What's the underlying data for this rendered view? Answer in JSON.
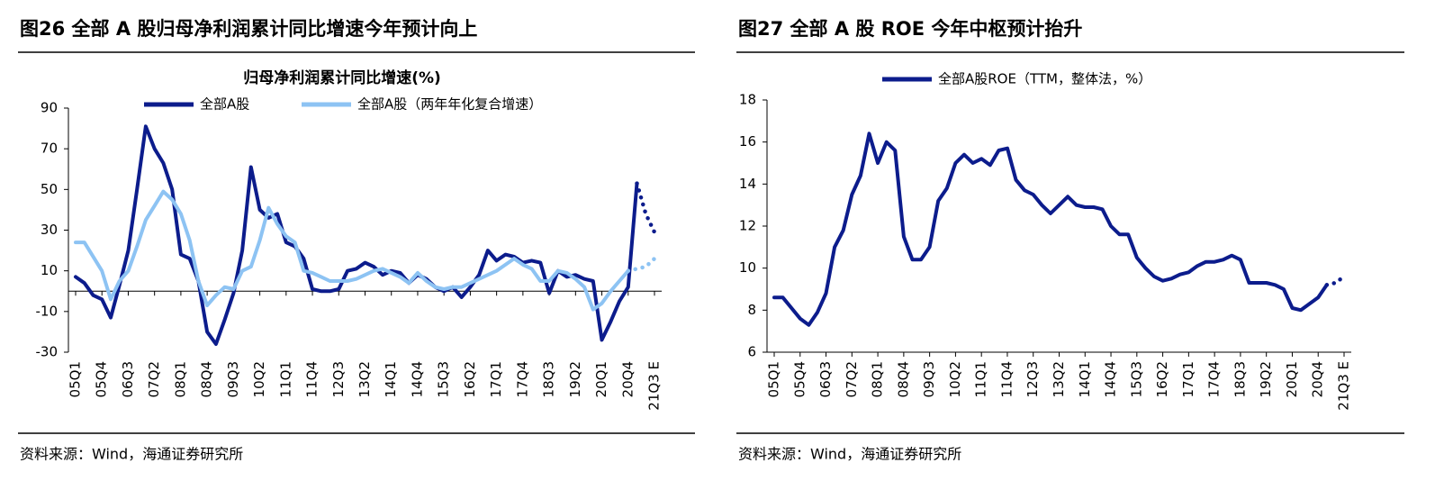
{
  "chart_data": [
    {
      "type": "line",
      "figure_title": "图26 全部 A 股归母净利润累计同比增速今年预计向上",
      "title": "归母净利润累计同比增速(%)",
      "source": "资料来源：Wind，海通证券研究所",
      "categories": [
        "05Q1",
        null,
        null,
        "05Q4",
        null,
        null,
        "06Q3",
        null,
        null,
        "07Q2",
        null,
        null,
        "08Q1",
        null,
        null,
        "08Q4",
        null,
        null,
        "09Q3",
        null,
        null,
        "10Q2",
        null,
        null,
        "11Q1",
        null,
        null,
        "11Q4",
        null,
        null,
        "12Q3",
        null,
        null,
        "13Q2",
        null,
        null,
        "14Q1",
        null,
        null,
        "14Q4",
        null,
        null,
        "15Q3",
        null,
        null,
        "16Q2",
        null,
        null,
        "17Q1",
        null,
        null,
        "17Q4",
        null,
        null,
        "18Q3",
        null,
        null,
        "19Q2",
        null,
        null,
        "20Q1",
        null,
        null,
        "20Q4",
        null,
        null,
        "21Q3 E"
      ],
      "series": [
        {
          "name": "全部A股",
          "color": "#0c1c8c",
          "dotted_from": 64,
          "values": [
            7,
            4,
            -2,
            -4,
            -13,
            3,
            20,
            50,
            81,
            70,
            63,
            50,
            18,
            16,
            5,
            -20,
            -26,
            -14,
            -1,
            20,
            61,
            40,
            36,
            38,
            24,
            22,
            16,
            1,
            0,
            0,
            1,
            10,
            11,
            14,
            12,
            8,
            10,
            9,
            4,
            8,
            6,
            2,
            0,
            2,
            -3,
            2,
            8,
            20,
            15,
            18,
            17,
            14,
            15,
            14,
            -1,
            10,
            7,
            8,
            6,
            5,
            -24,
            -15,
            -5,
            2,
            53,
            38,
            29
          ]
        },
        {
          "name": "全部A股（两年年化复合增速）",
          "color": "#8dc3f3",
          "dotted_from": 63,
          "values": [
            24,
            24,
            17,
            10,
            -4,
            5,
            10,
            22,
            35,
            42,
            49,
            45,
            38,
            25,
            5,
            -7,
            -2,
            2,
            1,
            10,
            12,
            25,
            41,
            33,
            27,
            24,
            10,
            9,
            7,
            5,
            5,
            5,
            6,
            8,
            10,
            11,
            9,
            7,
            4,
            9,
            5,
            2,
            1,
            2,
            2,
            4,
            6,
            8,
            10,
            13,
            16,
            13,
            11,
            5,
            5,
            10,
            9,
            6,
            2,
            -9,
            -6,
            0,
            5,
            10,
            11,
            12,
            16
          ]
        }
      ],
      "ylim": [
        -30,
        90
      ],
      "yticks": [
        -30,
        -10,
        10,
        30,
        50,
        70,
        90
      ],
      "zero_line": true
    },
    {
      "type": "line",
      "figure_title": "图27  全部 A 股 ROE 今年中枢预计抬升",
      "source": "资料来源：Wind，海通证券研究所",
      "categories": [
        "05Q1",
        null,
        null,
        "05Q4",
        null,
        null,
        "06Q3",
        null,
        null,
        "07Q2",
        null,
        null,
        "08Q1",
        null,
        null,
        "08Q4",
        null,
        null,
        "09Q3",
        null,
        null,
        "10Q2",
        null,
        null,
        "11Q1",
        null,
        null,
        "11Q4",
        null,
        null,
        "12Q3",
        null,
        null,
        "13Q2",
        null,
        null,
        "14Q1",
        null,
        null,
        "14Q4",
        null,
        null,
        "15Q3",
        null,
        null,
        "16Q2",
        null,
        null,
        "17Q1",
        null,
        null,
        "17Q4",
        null,
        null,
        "18Q3",
        null,
        null,
        "19Q2",
        null,
        null,
        "20Q1",
        null,
        null,
        "20Q4",
        null,
        null,
        "21Q3 E"
      ],
      "series": [
        {
          "name": "全部A股ROE（TTM，整体法，%）",
          "color": "#0c1c8c",
          "dotted_from": 64,
          "values": [
            8.6,
            8.6,
            8.1,
            7.6,
            7.3,
            7.9,
            8.8,
            11.0,
            11.8,
            13.5,
            14.4,
            16.4,
            15.0,
            16.0,
            15.6,
            11.5,
            10.4,
            10.4,
            11.0,
            13.2,
            13.8,
            15.0,
            15.4,
            15.0,
            15.2,
            14.9,
            15.6,
            15.7,
            14.2,
            13.7,
            13.5,
            13.0,
            12.6,
            13.0,
            13.4,
            13.0,
            12.9,
            12.9,
            12.8,
            12.0,
            11.6,
            11.6,
            10.5,
            10.0,
            9.6,
            9.4,
            9.5,
            9.7,
            9.8,
            10.1,
            10.3,
            10.3,
            10.4,
            10.6,
            10.4,
            9.3,
            9.3,
            9.3,
            9.2,
            9.0,
            8.1,
            8.0,
            8.3,
            8.6,
            9.2,
            9.3,
            9.6
          ]
        }
      ],
      "ylim": [
        6,
        18
      ],
      "yticks": [
        6,
        8,
        10,
        12,
        14,
        16,
        18
      ],
      "zero_line": false
    }
  ]
}
